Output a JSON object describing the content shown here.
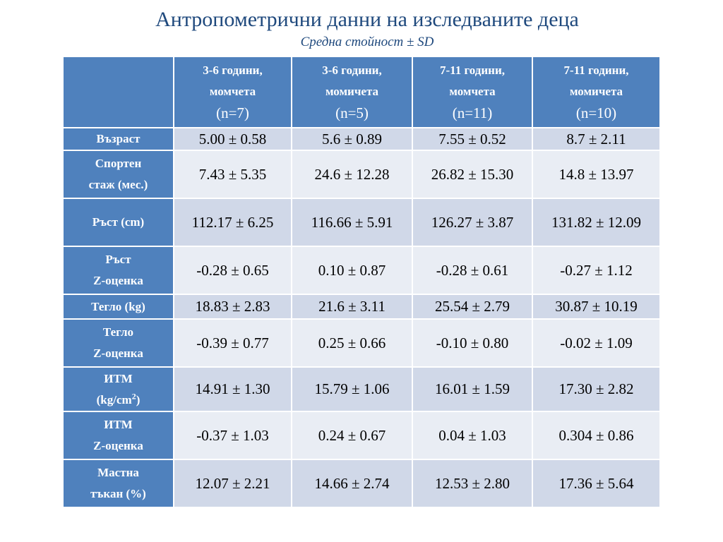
{
  "title": "Антропометрични данни на изследваните деца",
  "subtitle": "Средна стойност ± SD",
  "columns": [
    {
      "line1": "3-6 години,",
      "line2": "момчета",
      "n": "(n=7)"
    },
    {
      "line1": "3-6 години,",
      "line2": "момичета",
      "n": "(n=5)"
    },
    {
      "line1": "7-11 години,",
      "line2": "момчета",
      "n": "(n=11)"
    },
    {
      "line1": "7-11 години,",
      "line2": "момичета",
      "n": "(n=10)"
    }
  ],
  "rows": [
    {
      "label1": "Възраст",
      "label2": "",
      "values": [
        "5.00 ± 0.58",
        "5.6 ± 0.89",
        "7.55 ± 0.52",
        "8.7 ± 2.11"
      ]
    },
    {
      "label1": "Спортен",
      "label2": "стаж (мес.)",
      "values": [
        "7.43 ± 5.35",
        "24.6 ± 12.28",
        "26.82 ± 15.30",
        "14.8 ± 13.97"
      ]
    },
    {
      "label1": "Ръст (cm)",
      "label2": "",
      "values": [
        "112.17 ± 6.25",
        "116.66 ± 5.91",
        "126.27 ± 3.87",
        "131.82 ± 12.09"
      ]
    },
    {
      "label1": "Ръст",
      "label2": "Z-оценка",
      "values": [
        "-0.28 ± 0.65",
        "0.10 ± 0.87",
        "-0.28 ± 0.61",
        "-0.27 ± 1.12"
      ]
    },
    {
      "label1": "Тегло (kg)",
      "label2": "",
      "values": [
        "18.83 ± 2.83",
        "21.6 ± 3.11",
        "25.54 ± 2.79",
        "30.87 ± 10.19"
      ]
    },
    {
      "label1": "Тегло",
      "label2": "Z-оценка",
      "values": [
        "-0.39 ± 0.77",
        "0.25 ± 0.66",
        "-0.10 ± 0.80",
        "-0.02 ± 1.09"
      ]
    },
    {
      "label1": "ИТМ",
      "label2": "(kg/cm",
      "label2_sup": "2",
      "label2_end": ")",
      "values": [
        "14.91 ± 1.30",
        "15.79 ± 1.06",
        "16.01 ± 1.59",
        "17.30 ± 2.82"
      ]
    },
    {
      "label1": "ИТМ",
      "label2": "Z-оценка",
      "values": [
        "-0.37 ± 1.03",
        "0.24 ± 0.67",
        "0.04 ± 1.03",
        "0.304 ± 0.86"
      ]
    },
    {
      "label1": "Мастна",
      "label2": "тъкан (%)",
      "values": [
        "12.07 ± 2.21",
        "14.66 ± 2.74",
        "12.53 ± 2.80",
        "17.36 ± 5.64"
      ]
    }
  ]
}
